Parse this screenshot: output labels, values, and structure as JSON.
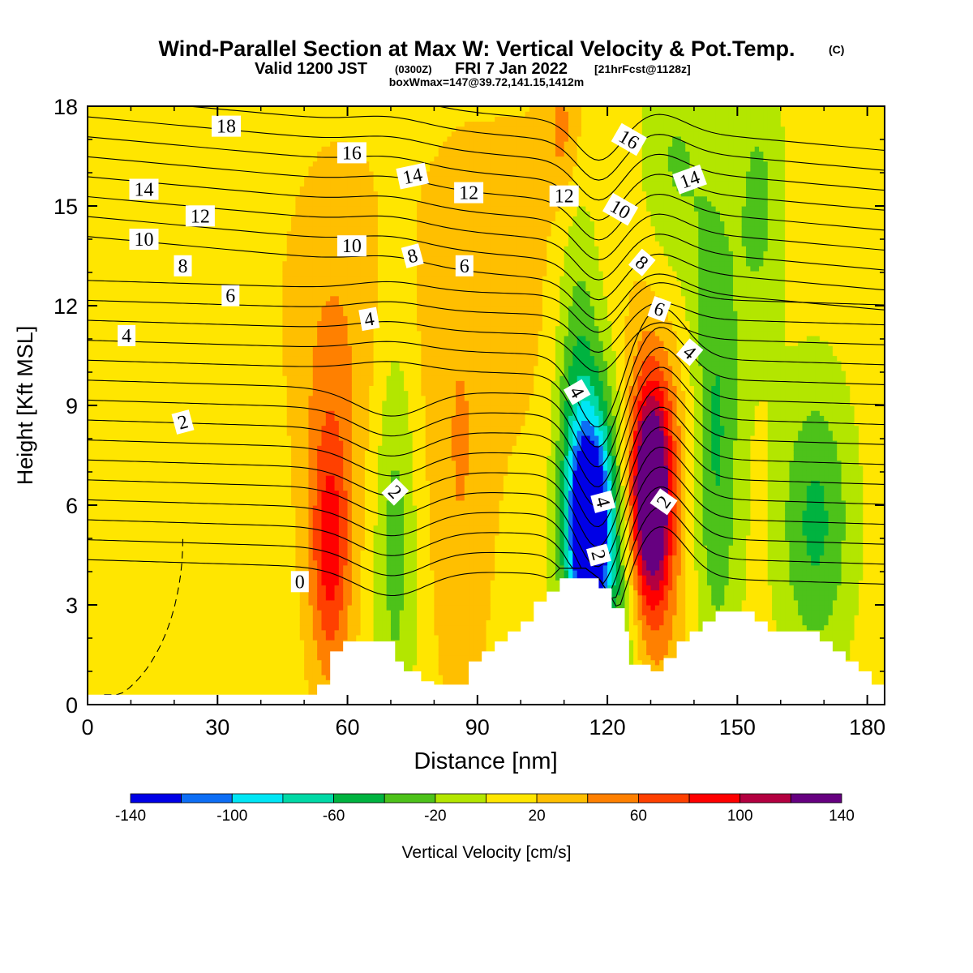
{
  "title": {
    "main": "Wind-Parallel Section at Max W: Vertical Velocity & Pot.Temp.",
    "copyright": "(C)",
    "valid_prefix": "Valid 1200 JST",
    "valid_utc": "(0300Z)",
    "valid_date": "FRI 7 Jan 2022",
    "forecast": "[21hrFcst@1128z]",
    "box": "boxWmax=147@39.72,141.15,1412m"
  },
  "colorbar": {
    "label": "Vertical Velocity [cm/s]",
    "levels": [
      -140,
      -120,
      -100,
      -80,
      -60,
      -40,
      -20,
      0,
      20,
      40,
      60,
      80,
      100,
      120,
      140
    ],
    "tick_labels": [
      "-140",
      "-100",
      "-60",
      "-20",
      "20",
      "60",
      "100",
      "140"
    ],
    "tick_values": [
      -140,
      -100,
      -60,
      -20,
      20,
      60,
      100,
      140
    ],
    "colors": [
      "#0000e6",
      "#0d6ef5",
      "#00e6f5",
      "#00d9a6",
      "#00b340",
      "#4dc21a",
      "#b3e600",
      "#ffe600",
      "#ffbf00",
      "#ff8000",
      "#ff4000",
      "#ff0000",
      "#b30040",
      "#660080"
    ]
  },
  "chart_data": {
    "type": "heatmap",
    "xlabel": "Distance [nm]",
    "ylabel": "Height [Kft MSL]",
    "xlim": [
      0,
      184
    ],
    "ylim": [
      0,
      18
    ],
    "x_ticks": [
      0,
      30,
      60,
      90,
      120,
      150,
      180
    ],
    "y_ticks": [
      0,
      3,
      6,
      9,
      12,
      15,
      18
    ],
    "field": "vertical velocity (cm/s), shaded",
    "background_value": 10,
    "features": [
      {
        "x": 56,
        "y": 4.5,
        "sx": 3,
        "sy": 2.5,
        "value": 55
      },
      {
        "x": 56,
        "y": 6.5,
        "sx": 5,
        "sy": 4.5,
        "value": 30
      },
      {
        "x": 71,
        "y": 5.5,
        "sx": 3.5,
        "sy": 5,
        "value": -40
      },
      {
        "x": 86,
        "y": 6,
        "sx": 5,
        "sy": 5,
        "value": 25
      },
      {
        "x": 116,
        "y": 5.2,
        "sx": 3,
        "sy": 1.9,
        "value": -150
      },
      {
        "x": 116,
        "y": 6.5,
        "sx": 5,
        "sy": 3.5,
        "value": -70
      },
      {
        "x": 113,
        "y": 9,
        "sx": 3.5,
        "sy": 6,
        "value": -35
      },
      {
        "x": 130,
        "y": 6.3,
        "sx": 3.2,
        "sy": 2.2,
        "value": 145
      },
      {
        "x": 130,
        "y": 6.3,
        "sx": 6.5,
        "sy": 4.8,
        "value": 45
      },
      {
        "x": 145,
        "y": 8,
        "sx": 4,
        "sy": 5,
        "value": -55
      },
      {
        "x": 168,
        "y": 5.5,
        "sx": 6,
        "sy": 3,
        "value": -55
      },
      {
        "x": 135,
        "y": 16,
        "sx": 6,
        "sy": 3,
        "value": -35
      },
      {
        "x": 155,
        "y": 15,
        "sx": 4,
        "sy": 3,
        "value": -35
      },
      {
        "x": 60,
        "y": 12,
        "sx": 15,
        "sy": 4,
        "value": 18
      },
      {
        "x": 100,
        "y": 13,
        "sx": 15,
        "sy": 5,
        "value": 15
      },
      {
        "x": 110,
        "y": 17.3,
        "sx": 3,
        "sy": 1.5,
        "value": 35
      },
      {
        "x": 123,
        "y": 3,
        "sx": 4,
        "sy": 4,
        "value": -45
      },
      {
        "x": 15,
        "y": 8,
        "sx": 25,
        "sy": 7,
        "value": -5
      }
    ],
    "terrain": {
      "x": [
        0,
        50,
        53,
        56,
        59,
        65,
        70,
        71,
        73,
        77,
        80,
        86,
        88,
        91,
        94,
        97,
        100,
        103,
        106,
        109,
        115,
        118,
        121,
        124,
        125,
        127,
        130,
        133,
        136,
        139,
        142,
        145,
        151,
        154,
        157,
        166,
        169,
        172,
        175,
        178,
        181,
        184
      ],
      "y": [
        0.3,
        0.3,
        0.6,
        1.6,
        1.9,
        1.9,
        1.9,
        1.3,
        1.0,
        0.7,
        0.6,
        0.6,
        1.3,
        1.6,
        1.9,
        2.2,
        2.5,
        3.1,
        3.4,
        3.8,
        3.8,
        3.5,
        2.9,
        2.2,
        1.2,
        1.2,
        1.0,
        1.4,
        1.9,
        2.2,
        2.5,
        2.8,
        2.8,
        2.5,
        2.2,
        2.2,
        1.9,
        1.6,
        1.3,
        1.0,
        0.6,
        0.3
      ]
    },
    "isentropes": {
      "labels": [
        {
          "text": "18",
          "x": 32,
          "y": 17.4,
          "angle": 0
        },
        {
          "text": "16",
          "x": 61,
          "y": 16.6,
          "angle": 0
        },
        {
          "text": "14",
          "x": 75,
          "y": 15.9,
          "angle": -12
        },
        {
          "text": "12",
          "x": 88,
          "y": 15.4,
          "angle": 0
        },
        {
          "text": "12",
          "x": 110,
          "y": 15.3,
          "angle": 0
        },
        {
          "text": "16",
          "x": 125,
          "y": 17.0,
          "angle": 30
        },
        {
          "text": "14",
          "x": 139,
          "y": 15.8,
          "angle": -20
        },
        {
          "text": "10",
          "x": 123,
          "y": 14.9,
          "angle": 30
        },
        {
          "text": "14",
          "x": 13,
          "y": 15.5,
          "angle": 0
        },
        {
          "text": "12",
          "x": 26,
          "y": 14.7,
          "angle": 0
        },
        {
          "text": "10",
          "x": 13,
          "y": 14.0,
          "angle": 0
        },
        {
          "text": "10",
          "x": 61,
          "y": 13.8,
          "angle": 0
        },
        {
          "text": "8",
          "x": 22,
          "y": 13.2,
          "angle": 0
        },
        {
          "text": "8",
          "x": 75,
          "y": 13.5,
          "angle": -15
        },
        {
          "text": "6",
          "x": 87,
          "y": 13.2,
          "angle": 0
        },
        {
          "text": "8",
          "x": 128,
          "y": 13.3,
          "angle": 40
        },
        {
          "text": "6",
          "x": 33,
          "y": 12.3,
          "angle": 0
        },
        {
          "text": "4",
          "x": 9,
          "y": 11.1,
          "angle": 0
        },
        {
          "text": "4",
          "x": 65,
          "y": 11.6,
          "angle": -10
        },
        {
          "text": "6",
          "x": 132,
          "y": 11.9,
          "angle": 20
        },
        {
          "text": "4",
          "x": 139,
          "y": 10.6,
          "angle": 40
        },
        {
          "text": "4",
          "x": 113,
          "y": 9.4,
          "angle": 60
        },
        {
          "text": "2",
          "x": 22,
          "y": 8.5,
          "angle": -15
        },
        {
          "text": "2",
          "x": 71,
          "y": 6.4,
          "angle": 45
        },
        {
          "text": "4",
          "x": 119,
          "y": 6.1,
          "angle": 75
        },
        {
          "text": "2",
          "x": 133,
          "y": 6.1,
          "angle": -55
        },
        {
          "text": "2",
          "x": 118,
          "y": 4.5,
          "angle": 75
        },
        {
          "text": "0",
          "x": 49,
          "y": 3.7,
          "angle": 0
        }
      ]
    }
  }
}
